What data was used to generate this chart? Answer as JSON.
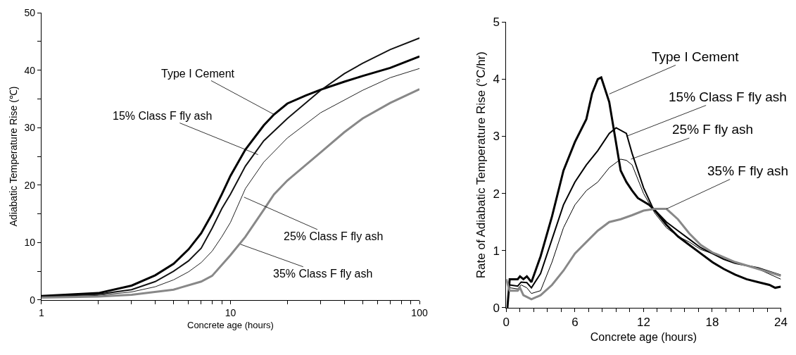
{
  "chart_data": [
    {
      "type": "line",
      "xlabel": "Concrete age (hours)",
      "ylabel": "Adiabatic Temperature Rise (℃)",
      "log": "x",
      "grid": false,
      "marker": "none",
      "line_style": "solid",
      "xlim": [
        1,
        100
      ],
      "xticks": [
        1,
        {
          "value": 2,
          "label": null
        },
        {
          "value": 3,
          "label": null
        },
        {
          "value": 4,
          "label": null
        },
        {
          "value": 5,
          "label": null
        },
        {
          "value": 6,
          "label": null
        },
        {
          "value": 7,
          "label": null
        },
        {
          "value": 8,
          "label": null
        },
        {
          "value": 9,
          "label": null
        },
        10,
        {
          "value": 20,
          "label": null
        },
        {
          "value": 30,
          "label": null
        },
        {
          "value": 40,
          "label": null
        },
        {
          "value": 50,
          "label": null
        },
        {
          "value": 60,
          "label": null
        },
        {
          "value": 70,
          "label": null
        },
        {
          "value": 80,
          "label": null
        },
        {
          "value": 90,
          "label": null
        },
        100
      ],
      "ylim": [
        0,
        50
      ],
      "yticks": [
        0,
        {
          "value": 5,
          "label": null
        },
        10,
        {
          "value": 15,
          "label": null
        },
        20,
        {
          "value": 25,
          "label": null
        },
        30,
        {
          "value": 35,
          "label": null
        },
        40,
        {
          "value": 45,
          "label": null
        },
        50
      ],
      "series": [
        {
          "color": "#000000",
          "x": [
            1,
            2,
            3,
            4,
            5,
            6,
            7,
            8,
            9,
            10,
            12,
            15,
            17,
            20,
            25,
            30,
            40,
            50,
            70,
            100
          ],
          "values": [
            0.7,
            1.2,
            2.5,
            4.3,
            6.3,
            8.8,
            11.6,
            15,
            18.4,
            21.6,
            26.2,
            30.4,
            32.3,
            34.2,
            35.6,
            36.6,
            38,
            39,
            40.4,
            42.4
          ]
        },
        {
          "color": "#111111",
          "x": [
            1,
            2,
            3,
            4,
            5,
            6,
            7,
            8,
            9,
            10,
            12,
            15,
            20,
            30,
            40,
            50,
            70,
            100
          ],
          "values": [
            0.6,
            1,
            1.8,
            3.2,
            5,
            6.8,
            9,
            12.5,
            15.9,
            18.4,
            23.3,
            27.7,
            31.6,
            36.5,
            39.4,
            41.2,
            43.6,
            45.6
          ]
        },
        {
          "color": "#222222",
          "x": [
            1,
            2,
            3,
            4,
            5,
            6,
            7,
            8,
            9,
            10,
            12,
            15,
            20,
            30,
            50,
            70,
            100
          ],
          "values": [
            0.5,
            0.8,
            1.4,
            2.3,
            3.5,
            4.9,
            6.5,
            8.5,
            11,
            13.5,
            19.4,
            24,
            28.2,
            32.6,
            36.5,
            38.7,
            40.3
          ]
        },
        {
          "color": "#888888",
          "x": [
            1,
            2,
            3,
            5,
            7,
            8,
            10,
            12,
            15,
            17,
            20,
            30,
            40,
            50,
            70,
            100
          ],
          "values": [
            0.4,
            0.6,
            0.9,
            1.8,
            3.2,
            4.2,
            7.8,
            11,
            15.7,
            18.4,
            20.8,
            25.7,
            29.2,
            31.6,
            34.3,
            36.7
          ]
        }
      ],
      "annotations": [
        {
          "text": "Type I Cement",
          "x": 17,
          "y": 32.3
        },
        {
          "text": "15% Class F fly ash",
          "x": 14,
          "y": 25.3
        },
        {
          "text": "25% Class F fly ash",
          "x": 11.8,
          "y": 17.9
        },
        {
          "text": "35% Class F fly ash",
          "x": 11.3,
          "y": 9.7
        }
      ]
    },
    {
      "type": "line",
      "xlabel": "Concrete age (hours)",
      "ylabel": "Rate of Adiabatic Temperature Rise (°C/hr)",
      "grid": false,
      "marker": "none",
      "line_style": "solid",
      "xlim": [
        0,
        24
      ],
      "xticks": [
        0,
        {
          "value": 1.2,
          "label": null
        },
        {
          "value": 2.4,
          "label": null
        },
        {
          "value": 3.6,
          "label": null
        },
        {
          "value": 4.8,
          "label": null
        },
        6,
        {
          "value": 7.2,
          "label": null
        },
        {
          "value": 8.4,
          "label": null
        },
        {
          "value": 9.6,
          "label": null
        },
        {
          "value": 10.8,
          "label": null
        },
        12,
        {
          "value": 13.2,
          "label": null
        },
        {
          "value": 14.4,
          "label": null
        },
        {
          "value": 15.6,
          "label": null
        },
        {
          "value": 16.8,
          "label": null
        },
        18,
        {
          "value": 19.2,
          "label": null
        },
        {
          "value": 20.4,
          "label": null
        },
        {
          "value": 21.6,
          "label": null
        },
        {
          "value": 22.8,
          "label": null
        },
        24
      ],
      "ylim": [
        0,
        5
      ],
      "yticks": [
        0,
        1,
        2,
        3,
        4,
        5
      ],
      "series": [
        {
          "color": "#000000",
          "x": [
            0.1,
            0.3,
            1,
            1.2,
            1.5,
            1.8,
            2.2,
            3,
            4,
            5,
            6,
            7,
            7.5,
            8,
            8.3,
            9,
            9.5,
            10,
            10.5,
            11,
            11.5,
            12.5,
            13,
            14,
            15,
            16,
            17,
            18,
            19,
            20,
            21,
            22,
            23,
            23.5,
            24
          ],
          "values": [
            0,
            0.5,
            0.5,
            0.55,
            0.5,
            0.55,
            0.45,
            0.9,
            1.6,
            2.4,
            2.9,
            3.3,
            3.75,
            4,
            4.03,
            3.6,
            3,
            2.4,
            2.2,
            2.05,
            1.92,
            1.8,
            1.7,
            1.45,
            1.25,
            1.1,
            0.95,
            0.8,
            0.68,
            0.58,
            0.5,
            0.45,
            0.4,
            0.35,
            0.37
          ]
        },
        {
          "color": "#000000",
          "x": [
            0.3,
            1,
            1.3,
            1.8,
            2.2,
            3,
            4,
            5,
            6,
            7,
            8,
            9,
            9.6,
            10.5,
            11,
            12,
            12.8,
            14,
            15,
            16,
            17,
            18,
            19,
            20,
            22,
            24
          ],
          "values": [
            0.4,
            0.38,
            0.45,
            0.44,
            0.35,
            0.6,
            1.2,
            1.8,
            2.2,
            2.5,
            2.75,
            3.05,
            3.15,
            3.05,
            2.7,
            2.1,
            1.75,
            1.5,
            1.35,
            1.2,
            1.05,
            0.95,
            0.85,
            0.78,
            0.7,
            0.57
          ]
        },
        {
          "color": "#000000",
          "x": [
            0.3,
            1,
            1.3,
            1.8,
            2.2,
            3,
            4,
            5,
            6,
            7,
            8,
            9,
            10,
            10.5,
            11,
            12,
            13,
            14,
            15,
            16,
            17,
            18,
            20,
            22,
            24
          ],
          "values": [
            0.35,
            0.33,
            0.4,
            0.35,
            0.25,
            0.3,
            0.8,
            1.4,
            1.8,
            2.05,
            2.2,
            2.45,
            2.6,
            2.58,
            2.5,
            2,
            1.65,
            1.4,
            1.25,
            1.15,
            1.02,
            0.95,
            0.8,
            0.68,
            0.5
          ]
        },
        {
          "color": "#888888",
          "x": [
            0,
            0.3,
            1,
            1.2,
            1.5,
            2.2,
            3,
            4,
            5,
            6,
            7,
            8,
            9,
            10,
            11,
            12,
            13,
            14,
            15,
            16,
            17,
            18,
            20,
            22,
            24
          ],
          "values": [
            0.5,
            0.3,
            0.3,
            0.35,
            0.22,
            0.15,
            0.22,
            0.4,
            0.65,
            0.95,
            1.15,
            1.35,
            1.5,
            1.55,
            1.62,
            1.7,
            1.73,
            1.73,
            1.55,
            1.3,
            1.1,
            0.97,
            0.8,
            0.68,
            0.56
          ]
        }
      ],
      "annotations": [
        {
          "text": "Type I Cement",
          "x": 9,
          "y": 3.74
        },
        {
          "text": "15% Class F fly ash",
          "x": 10.5,
          "y": 3
        },
        {
          "text": "25% F fly ash",
          "x": 10.9,
          "y": 2.6
        },
        {
          "text": "35% F fly ash",
          "x": 14,
          "y": 1.73
        }
      ]
    }
  ]
}
